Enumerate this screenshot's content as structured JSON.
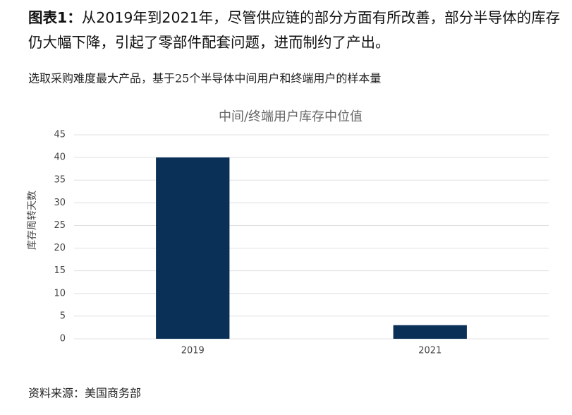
{
  "chart_data": {
    "type": "bar",
    "figure_label": "图表1：",
    "heading": "从2019年到2021年，尽管供应链的部分方面有所改善，部分半导体的库存仍大幅下降，引起了零部件配套问题，进而制约了产出。",
    "subtitle": "选取采购难度最大产品，基于25个半导体中间用户和终端用户的样本量",
    "title": "中间/终端用户库存中位值",
    "ylabel": "库存周转天数",
    "categories": [
      "2019",
      "2021"
    ],
    "values": [
      40,
      3
    ],
    "color": "#0b3058",
    "ylim": [
      0,
      45
    ],
    "yticks": [
      0,
      5,
      10,
      15,
      20,
      25,
      30,
      35,
      40,
      45
    ],
    "grid": true,
    "source": "资料来源：美国商务部"
  }
}
